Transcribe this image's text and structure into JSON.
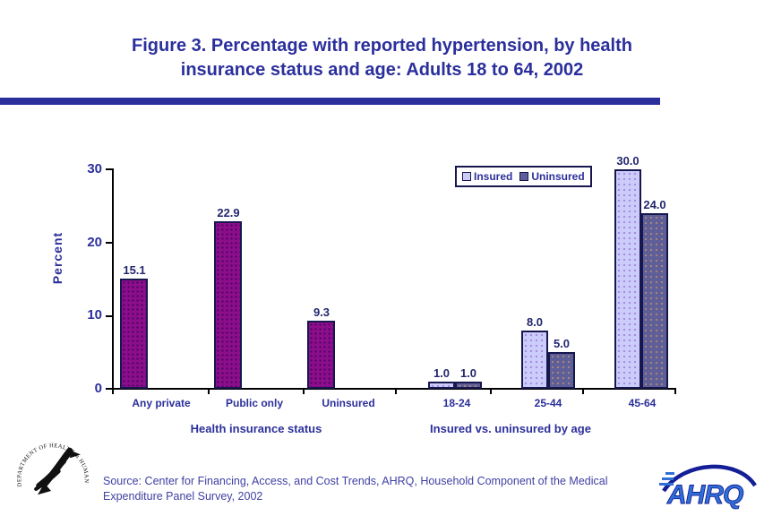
{
  "title": {
    "line1": "Figure 3. Percentage with reported hypertension, by health",
    "line2": "insurance status and age: Adults 18 to 64, 2002"
  },
  "chart_data": {
    "type": "bar",
    "title": "Figure 3. Percentage with reported hypertension, by health insurance status and age: Adults 18 to 64, 2002",
    "ylabel": "Percent",
    "ylim": [
      0,
      30
    ],
    "yticks": [
      0,
      10,
      20,
      30
    ],
    "grid": false,
    "legend_position": "top-right",
    "groups": [
      {
        "label": "Health insurance status",
        "axis_categories": [
          "Any private",
          "Public only",
          "Uninsured"
        ],
        "series": [
          {
            "name": "",
            "color": "#8C0E8C",
            "values": [
              15.1,
              22.9,
              9.3
            ]
          }
        ]
      },
      {
        "label": "Insured vs. uninsured by age",
        "axis_categories": [
          "18-24",
          "25-44",
          "45-64"
        ],
        "series": [
          {
            "name": "Insured",
            "color": "#CCCCFA",
            "values": [
              1.0,
              8.0,
              30.0
            ]
          },
          {
            "name": "Uninsured",
            "color": "#5E5E99",
            "values": [
              1.0,
              5.0,
              24.0
            ]
          }
        ]
      }
    ],
    "value_labels": [
      "15.1",
      "22.9",
      "9.3",
      "1.0",
      "1.0",
      "8.0",
      "5.0",
      "30.0",
      "24.0"
    ],
    "legend": {
      "entries": [
        "Insured",
        "Uninsured"
      ]
    }
  },
  "source": {
    "line1": "Source: Center for Financing, Access, and Cost Trends, AHRQ, Household Component of the Medical",
    "line2": "Expenditure Panel Survey, 2002"
  },
  "logos": {
    "hhs_text": "DEPARTMENT OF HEALTH & HUMAN SERVICES · USA",
    "ahrq_text": "AHRQ"
  },
  "colors": {
    "title_navy": "#2B2F9B",
    "bar_purple": "#8C0E8C",
    "bar_insured_light": "#CCCCFA",
    "bar_uninsured_slate": "#5E5E99",
    "bar_outline": "#17174F",
    "source_text": "#4040A4",
    "ahrq_blue": "#2F6FD6",
    "ahrq_swoosh": "#141E96"
  }
}
